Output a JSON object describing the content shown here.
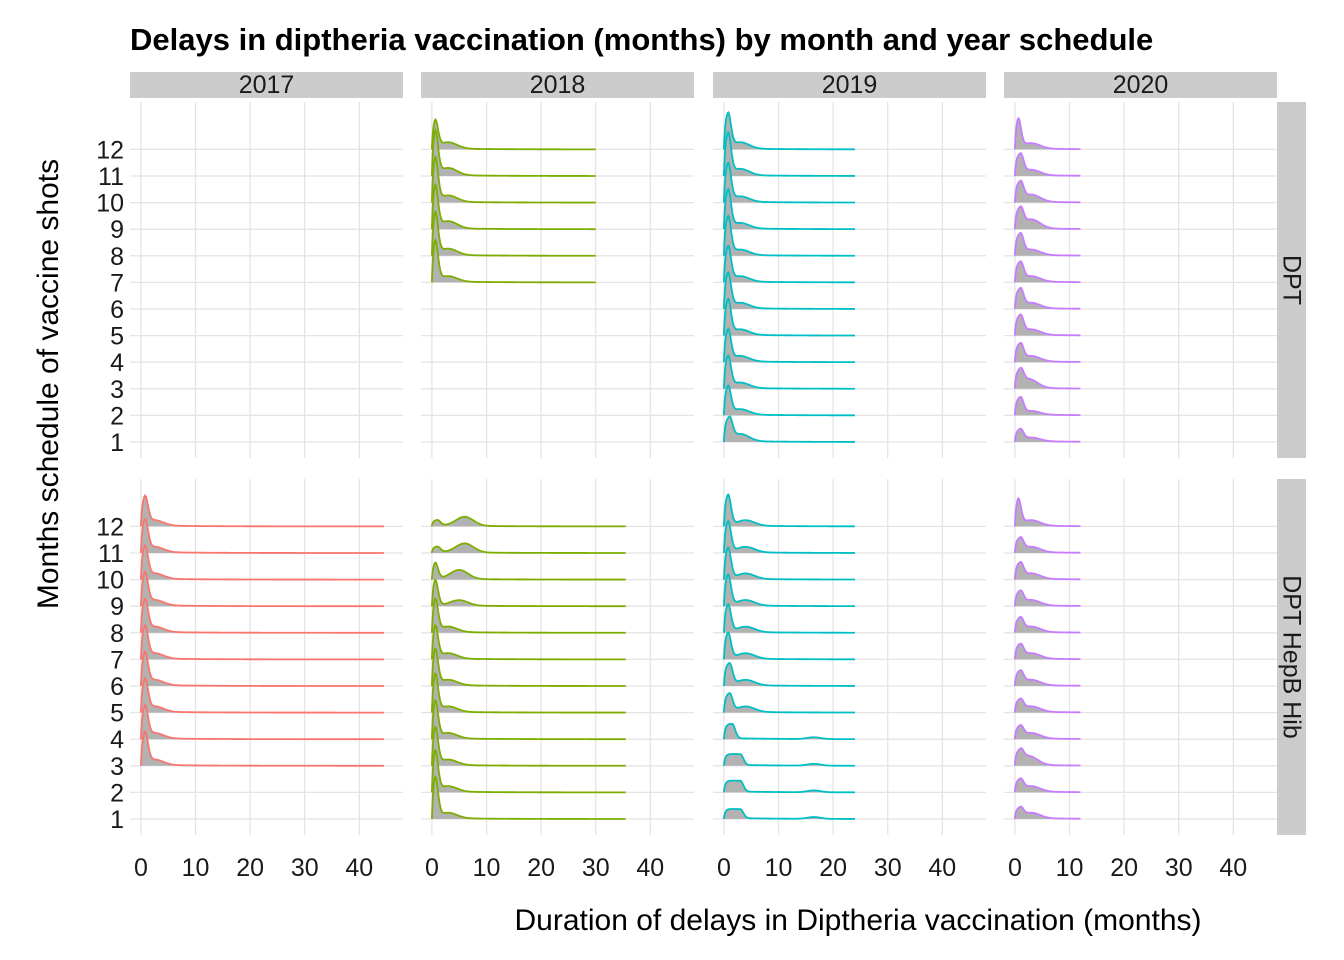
{
  "chart_data": {
    "type": "area",
    "subtype": "faceted ridgeline density plot",
    "title": "Delays in diptheria vaccination (months) by month and year schedule",
    "xlabel": "Duration of delays in Diptheria vaccination (months)",
    "ylabel": "Months schedule of vaccine shots",
    "xlim": [
      -2,
      48
    ],
    "x_ticks": [
      0,
      10,
      20,
      30,
      40
    ],
    "y_categories": [
      "1",
      "2",
      "3",
      "4",
      "5",
      "6",
      "7",
      "8",
      "9",
      "10",
      "11",
      "12"
    ],
    "grid": true,
    "fill_color": "#b2b2b2",
    "strip_color": "#cccccc",
    "columns": [
      "2017",
      "2018",
      "2019",
      "2020"
    ],
    "rows": [
      "DPT",
      "DPT_HepB_Hib"
    ],
    "row_strip_labels": [
      "DPT",
      "DPT  HepB  Hib"
    ],
    "panels": [
      {
        "vaccine": "DPT",
        "year": "2017",
        "color": "#f8766d",
        "x_max": 0,
        "ridges": []
      },
      {
        "vaccine": "DPT",
        "year": "2018",
        "color": "#7cae00",
        "x_max": 30,
        "ridges": [
          {
            "month": "7",
            "peak_x": 0.5,
            "peak_height": 2.5,
            "bump_x": 3,
            "bump_height": 0.3
          },
          {
            "month": "8",
            "peak_x": 0.5,
            "peak_height": 2.6,
            "bump_x": 3,
            "bump_height": 0.35
          },
          {
            "month": "9",
            "peak_x": 0.5,
            "peak_height": 2.6,
            "bump_x": 3,
            "bump_height": 0.4
          },
          {
            "month": "10",
            "peak_x": 0.5,
            "peak_height": 2.7,
            "bump_x": 3,
            "bump_height": 0.35
          },
          {
            "month": "11",
            "peak_x": 0.5,
            "peak_height": 2.7,
            "bump_x": 3,
            "bump_height": 0.4
          },
          {
            "month": "12",
            "peak_x": 0.5,
            "peak_height": 1.7,
            "bump_x": 3,
            "bump_height": 0.35
          }
        ]
      },
      {
        "vaccine": "DPT",
        "year": "2019",
        "color": "#00bfc4",
        "x_max": 24,
        "ridges": [
          {
            "month": "1",
            "peak_x": 1,
            "peak_height": 1.2,
            "bump_x": 3,
            "bump_height": 0.4
          },
          {
            "month": "2",
            "peak_x": 0.7,
            "peak_height": 1.6,
            "bump_x": 3,
            "bump_height": 0.3
          },
          {
            "month": "3",
            "peak_x": 0.7,
            "peak_height": 1.8,
            "bump_x": 3,
            "bump_height": 0.3
          },
          {
            "month": "4",
            "peak_x": 0.7,
            "peak_height": 1.8,
            "bump_x": 3,
            "bump_height": 0.3
          },
          {
            "month": "5",
            "peak_x": 0.7,
            "peak_height": 2.0,
            "bump_x": 3,
            "bump_height": 0.3
          },
          {
            "month": "6",
            "peak_x": 0.7,
            "peak_height": 2.0,
            "bump_x": 3,
            "bump_height": 0.3
          },
          {
            "month": "7",
            "peak_x": 0.7,
            "peak_height": 2.0,
            "bump_x": 3,
            "bump_height": 0.3
          },
          {
            "month": "8",
            "peak_x": 0.7,
            "peak_height": 2.2,
            "bump_x": 3,
            "bump_height": 0.3
          },
          {
            "month": "9",
            "peak_x": 0.7,
            "peak_height": 2.2,
            "bump_x": 3,
            "bump_height": 0.3
          },
          {
            "month": "10",
            "peak_x": 0.7,
            "peak_height": 2.2,
            "bump_x": 3,
            "bump_height": 0.3
          },
          {
            "month": "11",
            "peak_x": 0.7,
            "peak_height": 2.4,
            "bump_x": 3,
            "bump_height": 0.35
          },
          {
            "month": "12",
            "peak_x": 0.7,
            "peak_height": 2.0,
            "bump_x": 3,
            "bump_height": 0.35
          }
        ]
      },
      {
        "vaccine": "DPT",
        "year": "2020",
        "color": "#c77cff",
        "x_max": 12,
        "ridges": [
          {
            "month": "1",
            "peak_x": 1,
            "peak_height": 0.6,
            "bump_x": 3,
            "bump_height": 0.2
          },
          {
            "month": "2",
            "peak_x": 1,
            "peak_height": 0.9,
            "bump_x": 3,
            "bump_height": 0.2
          },
          {
            "month": "3",
            "peak_x": 1,
            "peak_height": 0.8,
            "bump_x": 2.5,
            "bump_height": 0.5
          },
          {
            "month": "4",
            "peak_x": 1,
            "peak_height": 0.9,
            "bump_x": 3,
            "bump_height": 0.3
          },
          {
            "month": "5",
            "peak_x": 1,
            "peak_height": 1.0,
            "bump_x": 3,
            "bump_height": 0.3
          },
          {
            "month": "6",
            "peak_x": 1,
            "peak_height": 1.0,
            "bump_x": 3,
            "bump_height": 0.3
          },
          {
            "month": "7",
            "peak_x": 1,
            "peak_height": 1.0,
            "bump_x": 3,
            "bump_height": 0.3
          },
          {
            "month": "8",
            "peak_x": 1,
            "peak_height": 1.1,
            "bump_x": 3,
            "bump_height": 0.3
          },
          {
            "month": "9",
            "peak_x": 1,
            "peak_height": 1.0,
            "bump_x": 3,
            "bump_height": 0.5
          },
          {
            "month": "10",
            "peak_x": 1,
            "peak_height": 1.0,
            "bump_x": 3,
            "bump_height": 0.4
          },
          {
            "month": "11",
            "peak_x": 1,
            "peak_height": 1.1,
            "bump_x": 3,
            "bump_height": 0.3
          },
          {
            "month": "12",
            "peak_x": 0.5,
            "peak_height": 1.8,
            "bump_x": 3,
            "bump_height": 0.3
          }
        ]
      },
      {
        "vaccine": "DPT_HepB_Hib",
        "year": "2017",
        "color": "#f8766d",
        "x_max": 44.5,
        "ridges": [
          {
            "month": "3",
            "peak_x": 0.7,
            "peak_height": 1.8,
            "bump_x": 2.5,
            "bump_height": 0.3
          },
          {
            "month": "4",
            "peak_x": 0.7,
            "peak_height": 1.8,
            "bump_x": 2.5,
            "bump_height": 0.3
          },
          {
            "month": "5",
            "peak_x": 0.7,
            "peak_height": 1.8,
            "bump_x": 2.5,
            "bump_height": 0.3
          },
          {
            "month": "6",
            "peak_x": 0.7,
            "peak_height": 1.8,
            "bump_x": 2.5,
            "bump_height": 0.3
          },
          {
            "month": "7",
            "peak_x": 0.7,
            "peak_height": 1.8,
            "bump_x": 2.5,
            "bump_height": 0.3
          },
          {
            "month": "8",
            "peak_x": 0.7,
            "peak_height": 1.8,
            "bump_x": 2.5,
            "bump_height": 0.3
          },
          {
            "month": "9",
            "peak_x": 0.7,
            "peak_height": 1.8,
            "bump_x": 2.5,
            "bump_height": 0.3
          },
          {
            "month": "10",
            "peak_x": 0.7,
            "peak_height": 1.8,
            "bump_x": 2.5,
            "bump_height": 0.3
          },
          {
            "month": "11",
            "peak_x": 0.7,
            "peak_height": 1.8,
            "bump_x": 2.5,
            "bump_height": 0.3
          },
          {
            "month": "12",
            "peak_x": 0.7,
            "peak_height": 1.6,
            "bump_x": 2.5,
            "bump_height": 0.3
          }
        ]
      },
      {
        "vaccine": "DPT_HepB_Hib",
        "year": "2018",
        "color": "#7cae00",
        "x_max": 35.5,
        "ridges": [
          {
            "month": "1",
            "peak_x": 0.5,
            "peak_height": 2.5,
            "bump_x": 3,
            "bump_height": 0.3
          },
          {
            "month": "2",
            "peak_x": 0.5,
            "peak_height": 2.5,
            "bump_x": 3,
            "bump_height": 0.3
          },
          {
            "month": "3",
            "peak_x": 0.5,
            "peak_height": 2.3,
            "bump_x": 3,
            "bump_height": 0.3
          },
          {
            "month": "4",
            "peak_x": 0.5,
            "peak_height": 2.3,
            "bump_x": 3,
            "bump_height": 0.3
          },
          {
            "month": "5",
            "peak_x": 0.5,
            "peak_height": 2.3,
            "bump_x": 3,
            "bump_height": 0.3
          },
          {
            "month": "6",
            "peak_x": 0.5,
            "peak_height": 2.2,
            "bump_x": 3,
            "bump_height": 0.3
          },
          {
            "month": "7",
            "peak_x": 0.5,
            "peak_height": 2.0,
            "bump_x": 3,
            "bump_height": 0.3
          },
          {
            "month": "8",
            "peak_x": 0.5,
            "peak_height": 2.0,
            "bump_x": 3,
            "bump_height": 0.3
          },
          {
            "month": "9",
            "peak_x": 0.5,
            "peak_height": 1.6,
            "bump_x": 5,
            "bump_height": 0.3
          },
          {
            "month": "10",
            "peak_x": 0.5,
            "peak_height": 1.0,
            "bump_x": 5,
            "bump_height": 0.5
          },
          {
            "month": "11",
            "peak_x": 1,
            "peak_height": 0.3,
            "bump_x": 6,
            "bump_height": 0.5
          },
          {
            "month": "12",
            "peak_x": 1,
            "peak_height": 0.3,
            "bump_x": 6,
            "bump_height": 0.5
          }
        ]
      },
      {
        "vaccine": "DPT_HepB_Hib",
        "year": "2019",
        "color": "#00bfc4",
        "x_max": 24,
        "ridges": [
          {
            "month": "1",
            "peak_x": 3,
            "peak_height": 0.5,
            "bump_x": 16.5,
            "bump_height": 0.1
          },
          {
            "month": "2",
            "peak_x": 3,
            "peak_height": 0.6,
            "bump_x": 16.5,
            "bump_height": 0.1
          },
          {
            "month": "3",
            "peak_x": 3,
            "peak_height": 0.6,
            "bump_x": 16.5,
            "bump_height": 0.1
          },
          {
            "month": "4",
            "peak_x": 1.5,
            "peak_height": 0.8,
            "bump_x": 16.5,
            "bump_height": 0.1
          },
          {
            "month": "5",
            "peak_x": 1,
            "peak_height": 1.0,
            "bump_x": 4,
            "bump_height": 0.3
          },
          {
            "month": "6",
            "peak_x": 1,
            "peak_height": 1.2,
            "bump_x": 4,
            "bump_height": 0.3
          },
          {
            "month": "7",
            "peak_x": 0.7,
            "peak_height": 1.5,
            "bump_x": 4,
            "bump_height": 0.3
          },
          {
            "month": "8",
            "peak_x": 0.7,
            "peak_height": 1.6,
            "bump_x": 4,
            "bump_height": 0.3
          },
          {
            "month": "9",
            "peak_x": 0.7,
            "peak_height": 1.8,
            "bump_x": 4,
            "bump_height": 0.3
          },
          {
            "month": "10",
            "peak_x": 0.7,
            "peak_height": 1.8,
            "bump_x": 4,
            "bump_height": 0.3
          },
          {
            "month": "11",
            "peak_x": 0.7,
            "peak_height": 1.8,
            "bump_x": 4,
            "bump_height": 0.3
          },
          {
            "month": "12",
            "peak_x": 0.7,
            "peak_height": 1.8,
            "bump_x": 4,
            "bump_height": 0.3
          }
        ]
      },
      {
        "vaccine": "DPT_HepB_Hib",
        "year": "2020",
        "color": "#c77cff",
        "x_max": 12,
        "ridges": [
          {
            "month": "1",
            "peak_x": 1,
            "peak_height": 0.5,
            "bump_x": 3,
            "bump_height": 0.3
          },
          {
            "month": "2",
            "peak_x": 1,
            "peak_height": 0.6,
            "bump_x": 3,
            "bump_height": 0.3
          },
          {
            "month": "3",
            "peak_x": 1,
            "peak_height": 0.6,
            "bump_x": 2.5,
            "bump_height": 0.5
          },
          {
            "month": "4",
            "peak_x": 1,
            "peak_height": 0.6,
            "bump_x": 3,
            "bump_height": 0.3
          },
          {
            "month": "5",
            "peak_x": 1,
            "peak_height": 0.6,
            "bump_x": 3,
            "bump_height": 0.3
          },
          {
            "month": "6",
            "peak_x": 1,
            "peak_height": 0.7,
            "bump_x": 3,
            "bump_height": 0.3
          },
          {
            "month": "7",
            "peak_x": 1,
            "peak_height": 0.7,
            "bump_x": 3,
            "bump_height": 0.3
          },
          {
            "month": "8",
            "peak_x": 1,
            "peak_height": 0.7,
            "bump_x": 3,
            "bump_height": 0.3
          },
          {
            "month": "9",
            "peak_x": 1,
            "peak_height": 0.7,
            "bump_x": 3,
            "bump_height": 0.3
          },
          {
            "month": "10",
            "peak_x": 1,
            "peak_height": 0.8,
            "bump_x": 3,
            "bump_height": 0.3
          },
          {
            "month": "11",
            "peak_x": 1,
            "peak_height": 0.7,
            "bump_x": 3,
            "bump_height": 0.3
          },
          {
            "month": "12",
            "peak_x": 0.5,
            "peak_height": 1.6,
            "bump_x": 3,
            "bump_height": 0.3
          }
        ]
      }
    ]
  }
}
